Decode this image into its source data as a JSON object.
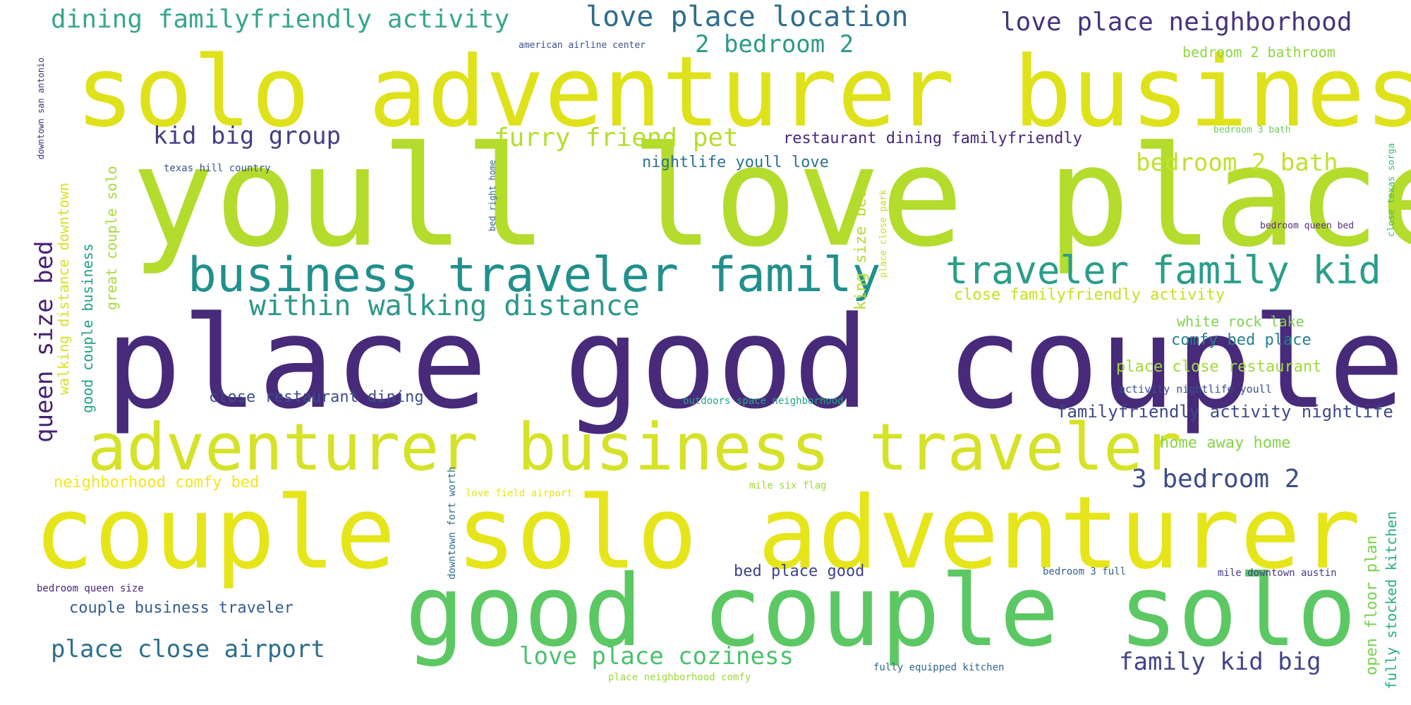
{
  "words": [
    {
      "text": "solo adventurer business",
      "color": "#dfe21a"
    },
    {
      "text": "youll love place",
      "color": "#b3dc2d"
    },
    {
      "text": "place good couple",
      "color": "#472a7a"
    },
    {
      "text": "adventurer business traveler",
      "color": "#d6e227"
    },
    {
      "text": "couple solo adventurer",
      "color": "#e6e51a"
    },
    {
      "text": "good couple solo",
      "color": "#5cc863"
    },
    {
      "text": "business traveler family",
      "color": "#21908d"
    },
    {
      "text": "traveler family kid",
      "color": "#2a9e8a"
    },
    {
      "text": "within walking distance",
      "color": "#2c988a"
    },
    {
      "text": "dining familyfriendly activity",
      "color": "#36a68c"
    },
    {
      "text": "love place location",
      "color": "#2f6d8e"
    },
    {
      "text": "2 bedroom 2",
      "color": "#2c9a89"
    },
    {
      "text": "love place neighborhood",
      "color": "#45347e"
    },
    {
      "text": "american airline center",
      "color": "#3b518b"
    },
    {
      "text": "bedroom 2 bathroom",
      "color": "#8fd744"
    },
    {
      "text": "kid big group",
      "color": "#433e85"
    },
    {
      "text": "furry friend pet",
      "color": "#b5de2b"
    },
    {
      "text": "restaurant dining familyfriendly",
      "color": "#482878"
    },
    {
      "text": "nightlife youll love",
      "color": "#2c728e"
    },
    {
      "text": "bedroom 2 bath",
      "color": "#bfe22b"
    },
    {
      "text": "bedroom 3 bath",
      "color": "#6ccd5a"
    },
    {
      "text": "texas hill country",
      "color": "#3b528b"
    },
    {
      "text": "bedroom queen bed",
      "color": "#5a2c84"
    },
    {
      "text": "close familyfriendly activity",
      "color": "#c8e020"
    },
    {
      "text": "white rock lake",
      "color": "#7fd34e"
    },
    {
      "text": "comfy bed place",
      "color": "#27808e"
    },
    {
      "text": "place close restaurant",
      "color": "#a0da39"
    },
    {
      "text": "activity nightlife youll",
      "color": "#3c4f8a"
    },
    {
      "text": "familyfriendly activity nightlife",
      "color": "#3f4889"
    },
    {
      "text": "home away home",
      "color": "#86d549"
    },
    {
      "text": "3 bedroom 2",
      "color": "#3e4c8a"
    },
    {
      "text": "close restaurant dining",
      "color": "#3d4e8a"
    },
    {
      "text": "outdoors space neighborhood",
      "color": "#22a785"
    },
    {
      "text": "neighborhood comfy bed",
      "color": "#f4e61e"
    },
    {
      "text": "love field airport",
      "color": "#e7e419"
    },
    {
      "text": "mile six flag",
      "color": "#a2da37"
    },
    {
      "text": "bed place good",
      "color": "#404387"
    },
    {
      "text": "bedroom 3 full",
      "color": "#355e8d"
    },
    {
      "text": "mile downtown austin",
      "color": "#443a83"
    },
    {
      "text": "bedroom queen size",
      "color": "#482576"
    },
    {
      "text": "couple business traveler",
      "color": "#365c8d"
    },
    {
      "text": "place close airport",
      "color": "#2e6e8e"
    },
    {
      "text": "love place coziness",
      "color": "#4ac16d"
    },
    {
      "text": "family kid big",
      "color": "#414487"
    },
    {
      "text": "fully equipped kitchen",
      "color": "#31688e"
    },
    {
      "text": "place neighborhood comfy",
      "color": "#9dd93b"
    },
    {
      "text": "queen size bed",
      "color": "#482173"
    },
    {
      "text": "walking distance downtown",
      "color": "#d8e219"
    },
    {
      "text": "good couple business",
      "color": "#1fa088"
    },
    {
      "text": "great couple solo",
      "color": "#a8db34"
    },
    {
      "text": "downtown san antonio",
      "color": "#472d7b"
    },
    {
      "text": "king size bed",
      "color": "#b2dd2d"
    },
    {
      "text": "place close park",
      "color": "#c5e021"
    },
    {
      "text": "bed right home",
      "color": "#33638d"
    },
    {
      "text": "downtown fort worth",
      "color": "#2d708e"
    },
    {
      "text": "close texas sorga",
      "color": "#3fbc73"
    },
    {
      "text": "open floor plan",
      "color": "#7ad151"
    },
    {
      "text": "fully stocked kitchen",
      "color": "#29af7f"
    }
  ]
}
